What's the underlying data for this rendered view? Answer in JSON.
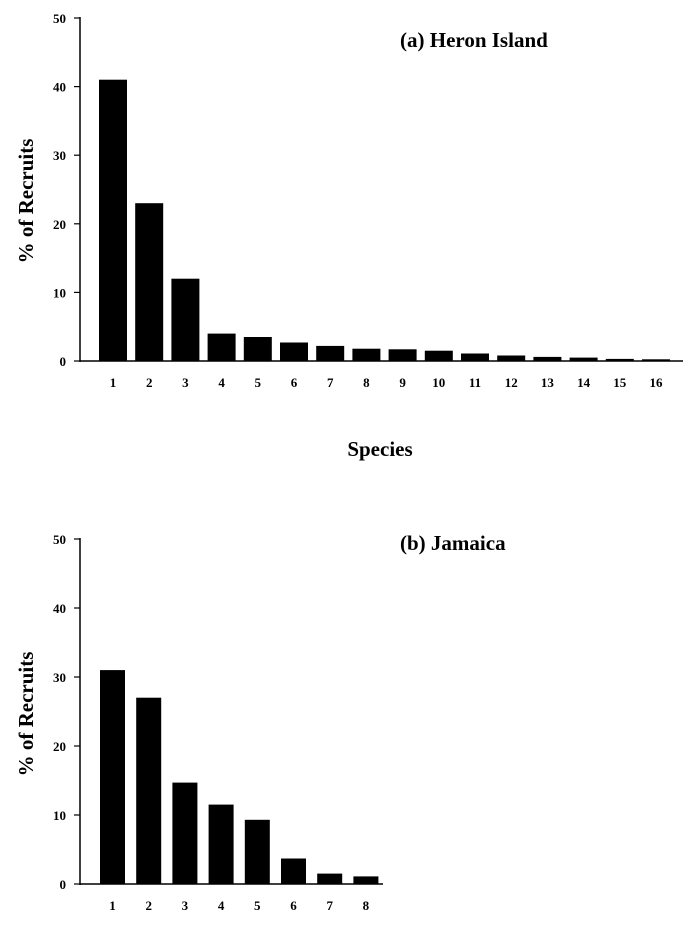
{
  "colors": {
    "bar": "#000000",
    "axis": "#000000",
    "background": "#ffffff"
  },
  "chart_data": [
    {
      "type": "bar",
      "title": "(a) Heron Island",
      "xlabel": "Species",
      "ylabel": "% of Recruits",
      "ylim": [
        0,
        50
      ],
      "yticks": [
        0,
        10,
        20,
        30,
        40,
        50
      ],
      "categories": [
        "1",
        "2",
        "3",
        "4",
        "5",
        "6",
        "7",
        "8",
        "9",
        "10",
        "11",
        "12",
        "13",
        "14",
        "15",
        "16"
      ],
      "values": [
        41,
        23,
        12,
        4,
        3.5,
        2.7,
        2.2,
        1.8,
        1.7,
        1.5,
        1.1,
        0.8,
        0.6,
        0.5,
        0.3,
        0.25
      ],
      "grid": false,
      "legend": "none"
    },
    {
      "type": "bar",
      "title": "(b) Jamaica",
      "xlabel": "",
      "ylabel": "% of Recruits",
      "ylim": [
        0,
        50
      ],
      "yticks": [
        0,
        10,
        20,
        30,
        40,
        50
      ],
      "categories": [
        "1",
        "2",
        "3",
        "4",
        "5",
        "6",
        "7",
        "8"
      ],
      "values": [
        31,
        27,
        14.7,
        11.5,
        9.3,
        3.7,
        1.5,
        1.1
      ],
      "grid": false,
      "legend": "none"
    }
  ]
}
